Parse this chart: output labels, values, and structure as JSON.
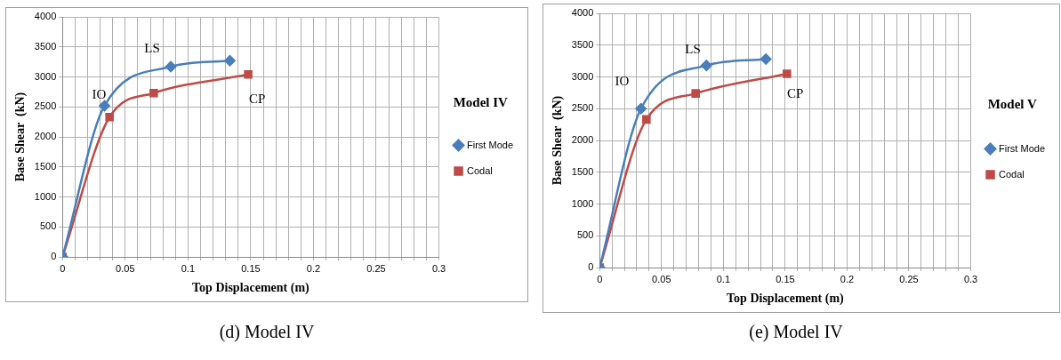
{
  "chart_data": [
    {
      "type": "line",
      "xlabel": "Top Displacement (m)",
      "ylabel": "Base Shear  (kN)",
      "series": [
        {
          "name": "First Mode",
          "color": "#4a7ebb",
          "marker": "diamond",
          "x": [
            0,
            0.0335,
            0.0863,
            0.1334
          ],
          "values": [
            0,
            2520,
            3170,
            3270
          ]
        },
        {
          "name": "Codal",
          "color": "#be4b48",
          "marker": "square",
          "x": [
            0,
            0.0375,
            0.0727,
            0.148
          ],
          "values": [
            0,
            2330,
            2730,
            3040
          ]
        }
      ],
      "xlim": [
        0,
        0.3
      ],
      "ylim": [
        0,
        4000
      ],
      "xticks": [
        0,
        {
          "value": 0.01,
          "label": null
        },
        {
          "value": 0.02,
          "label": null
        },
        {
          "value": 0.03,
          "label": null
        },
        {
          "value": 0.04,
          "label": null
        },
        0.05,
        {
          "value": 0.06,
          "label": null
        },
        {
          "value": 0.07,
          "label": null
        },
        {
          "value": 0.08,
          "label": null
        },
        {
          "value": 0.09,
          "label": null
        },
        0.1,
        {
          "value": 0.11,
          "label": null
        },
        {
          "value": 0.12,
          "label": null
        },
        {
          "value": 0.13,
          "label": null
        },
        {
          "value": 0.14,
          "label": null
        },
        0.15,
        {
          "value": 0.16,
          "label": null
        },
        {
          "value": 0.17,
          "label": null
        },
        {
          "value": 0.18,
          "label": null
        },
        {
          "value": 0.19,
          "label": null
        },
        0.2,
        {
          "value": 0.21,
          "label": null
        },
        {
          "value": 0.22,
          "label": null
        },
        {
          "value": 0.23,
          "label": null
        },
        {
          "value": 0.24,
          "label": null
        },
        0.25,
        {
          "value": 0.26,
          "label": null
        },
        {
          "value": 0.27,
          "label": null
        },
        {
          "value": 0.28,
          "label": null
        },
        {
          "value": 0.29,
          "label": null
        },
        0.3
      ],
      "yticks": [
        0,
        500,
        1000,
        1500,
        2000,
        2500,
        3000,
        3500,
        4000
      ],
      "grid": true,
      "legend": "right",
      "annotations": [
        "IO",
        "LS",
        "CP",
        "Model IV",
        "(d) Model IV"
      ]
    },
    {
      "type": "line",
      "xlabel": "Top Displacement (m)",
      "ylabel": "Base Shear  (kN)",
      "series": [
        {
          "name": "First Mode",
          "color": "#4a7ebb",
          "marker": "diamond",
          "x": [
            0,
            0.0334,
            0.0863,
            0.1344
          ],
          "values": [
            0,
            2500,
            3180,
            3280
          ]
        },
        {
          "name": "Codal",
          "color": "#be4b48",
          "marker": "square",
          "x": [
            0,
            0.0378,
            0.0776,
            0.1514
          ],
          "values": [
            0,
            2330,
            2740,
            3050
          ]
        }
      ],
      "xlim": [
        0,
        0.3
      ],
      "ylim": [
        0,
        4000
      ],
      "xticks": [
        0,
        {
          "value": 0.01,
          "label": null
        },
        {
          "value": 0.02,
          "label": null
        },
        {
          "value": 0.03,
          "label": null
        },
        {
          "value": 0.04,
          "label": null
        },
        0.05,
        {
          "value": 0.06,
          "label": null
        },
        {
          "value": 0.07,
          "label": null
        },
        {
          "value": 0.08,
          "label": null
        },
        {
          "value": 0.09,
          "label": null
        },
        0.1,
        {
          "value": 0.11,
          "label": null
        },
        {
          "value": 0.12,
          "label": null
        },
        {
          "value": 0.13,
          "label": null
        },
        {
          "value": 0.14,
          "label": null
        },
        0.15,
        {
          "value": 0.16,
          "label": null
        },
        {
          "value": 0.17,
          "label": null
        },
        {
          "value": 0.18,
          "label": null
        },
        {
          "value": 0.19,
          "label": null
        },
        0.2,
        {
          "value": 0.21,
          "label": null
        },
        {
          "value": 0.22,
          "label": null
        },
        {
          "value": 0.23,
          "label": null
        },
        {
          "value": 0.24,
          "label": null
        },
        0.25,
        {
          "value": 0.26,
          "label": null
        },
        {
          "value": 0.27,
          "label": null
        },
        {
          "value": 0.28,
          "label": null
        },
        {
          "value": 0.29,
          "label": null
        },
        0.3
      ],
      "yticks": [
        0,
        500,
        1000,
        1500,
        2000,
        2500,
        3000,
        3500,
        4000
      ],
      "grid": true,
      "legend": "right",
      "annotations": [
        "IO",
        "LS",
        "CP",
        "Model V",
        "(e) Model IV"
      ]
    }
  ]
}
